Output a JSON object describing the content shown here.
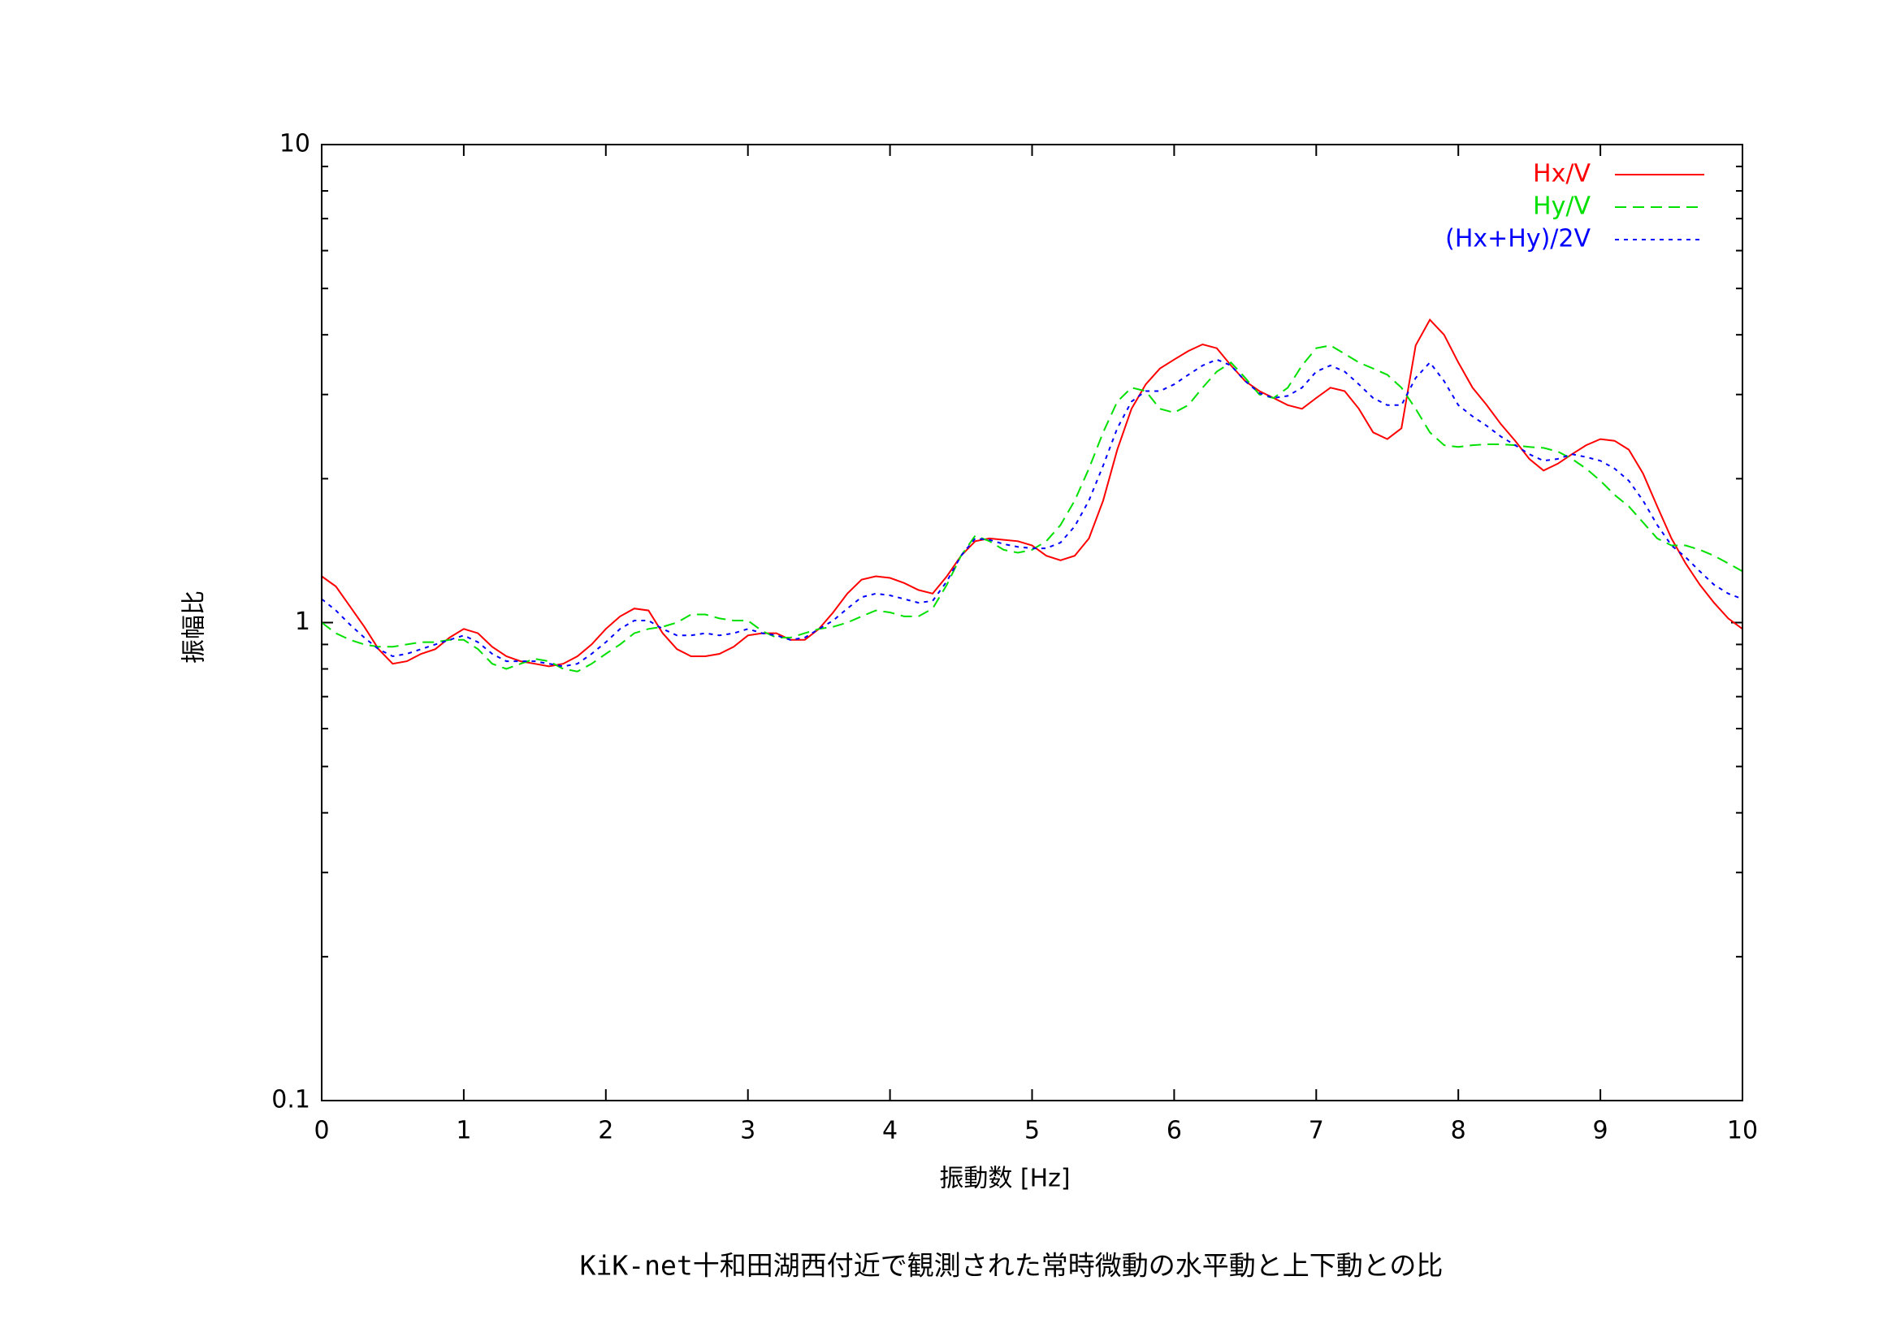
{
  "chart_data": {
    "type": "line",
    "title": "KiK-net十和田湖西付近で観測された常時微動の水平動と上下動との比",
    "xlabel": "振動数 [Hz]",
    "ylabel": "振幅比",
    "log_y": true,
    "legend": "top-right",
    "xlim": [
      0,
      10
    ],
    "xticks": [
      0,
      1,
      2,
      3,
      4,
      5,
      6,
      7,
      8,
      9,
      10
    ],
    "ylim": [
      0.1,
      10
    ],
    "yticks": [
      0.1,
      1,
      10
    ],
    "yminorticks": [
      0.2,
      0.3,
      0.4,
      0.5,
      0.6,
      0.7,
      0.8,
      0.9,
      2,
      3,
      4,
      5,
      6,
      7,
      8,
      9
    ],
    "x": [
      0,
      0.1,
      0.2,
      0.3,
      0.4,
      0.5,
      0.6,
      0.7,
      0.8,
      0.9,
      1,
      1.1,
      1.2,
      1.3,
      1.4,
      1.5,
      1.6,
      1.7,
      1.8,
      1.9,
      2,
      2.1,
      2.2,
      2.3,
      2.4,
      2.5,
      2.6,
      2.7,
      2.8,
      2.9,
      3,
      3.1,
      3.2,
      3.3,
      3.4,
      3.5,
      3.6,
      3.7,
      3.8,
      3.9,
      4,
      4.1,
      4.2,
      4.3,
      4.4,
      4.5,
      4.6,
      4.7,
      4.8,
      4.9,
      5,
      5.1,
      5.2,
      5.3,
      5.4,
      5.5,
      5.6,
      5.7,
      5.8,
      5.9,
      6,
      6.1,
      6.2,
      6.3,
      6.4,
      6.5,
      6.6,
      6.7,
      6.8,
      6.9,
      7,
      7.1,
      7.2,
      7.3,
      7.4,
      7.5,
      7.6,
      7.7,
      7.8,
      7.9,
      8,
      8.1,
      8.2,
      8.3,
      8.4,
      8.5,
      8.6,
      8.7,
      8.8,
      8.9,
      9,
      9.1,
      9.2,
      9.3,
      9.4,
      9.5,
      9.6,
      9.7,
      9.8,
      9.9,
      10
    ],
    "series": [
      {
        "name": "Hx/V",
        "color": "#ff0000",
        "dash": "none",
        "values": [
          1.25,
          1.19,
          1.08,
          0.98,
          0.88,
          0.82,
          0.83,
          0.86,
          0.88,
          0.93,
          0.97,
          0.95,
          0.89,
          0.85,
          0.83,
          0.82,
          0.81,
          0.82,
          0.85,
          0.9,
          0.97,
          1.03,
          1.07,
          1.06,
          0.95,
          0.88,
          0.85,
          0.85,
          0.86,
          0.89,
          0.94,
          0.95,
          0.95,
          0.92,
          0.92,
          0.97,
          1.05,
          1.15,
          1.23,
          1.25,
          1.24,
          1.21,
          1.17,
          1.15,
          1.25,
          1.38,
          1.48,
          1.5,
          1.49,
          1.48,
          1.45,
          1.38,
          1.35,
          1.38,
          1.5,
          1.8,
          2.3,
          2.8,
          3.15,
          3.4,
          3.55,
          3.7,
          3.82,
          3.75,
          3.45,
          3.2,
          3.05,
          2.95,
          2.85,
          2.8,
          2.95,
          3.1,
          3.05,
          2.8,
          2.5,
          2.42,
          2.55,
          3.8,
          4.3,
          4.0,
          3.5,
          3.1,
          2.85,
          2.6,
          2.4,
          2.2,
          2.08,
          2.15,
          2.25,
          2.35,
          2.42,
          2.4,
          2.3,
          2.05,
          1.75,
          1.5,
          1.33,
          1.2,
          1.1,
          1.02,
          0.97
        ]
      },
      {
        "name": "Hy/V",
        "color": "#00e000",
        "dash": "14 8",
        "values": [
          1.0,
          0.95,
          0.92,
          0.9,
          0.89,
          0.89,
          0.9,
          0.91,
          0.91,
          0.92,
          0.92,
          0.88,
          0.82,
          0.8,
          0.82,
          0.84,
          0.83,
          0.8,
          0.79,
          0.82,
          0.86,
          0.9,
          0.95,
          0.97,
          0.98,
          1.0,
          1.04,
          1.04,
          1.02,
          1.01,
          1.01,
          0.96,
          0.93,
          0.93,
          0.95,
          0.97,
          0.98,
          1.0,
          1.03,
          1.06,
          1.05,
          1.03,
          1.03,
          1.07,
          1.2,
          1.38,
          1.52,
          1.48,
          1.42,
          1.4,
          1.42,
          1.48,
          1.6,
          1.8,
          2.1,
          2.5,
          2.9,
          3.1,
          3.05,
          2.8,
          2.75,
          2.85,
          3.1,
          3.35,
          3.5,
          3.25,
          3.0,
          2.95,
          3.1,
          3.45,
          3.75,
          3.8,
          3.65,
          3.5,
          3.4,
          3.3,
          3.1,
          2.8,
          2.5,
          2.35,
          2.33,
          2.35,
          2.36,
          2.36,
          2.35,
          2.33,
          2.32,
          2.28,
          2.2,
          2.1,
          1.98,
          1.85,
          1.75,
          1.62,
          1.5,
          1.45,
          1.45,
          1.42,
          1.38,
          1.33,
          1.28
        ]
      },
      {
        "name": "(Hx+Hy)/2V",
        "color": "#0000ff",
        "dash": "5 6",
        "values": [
          1.12,
          1.06,
          0.99,
          0.93,
          0.88,
          0.85,
          0.86,
          0.88,
          0.9,
          0.92,
          0.94,
          0.91,
          0.86,
          0.83,
          0.83,
          0.83,
          0.82,
          0.81,
          0.82,
          0.86,
          0.91,
          0.97,
          1.01,
          1.01,
          0.97,
          0.94,
          0.94,
          0.95,
          0.94,
          0.95,
          0.97,
          0.95,
          0.94,
          0.92,
          0.93,
          0.97,
          1.01,
          1.07,
          1.13,
          1.15,
          1.14,
          1.12,
          1.1,
          1.11,
          1.22,
          1.38,
          1.5,
          1.49,
          1.46,
          1.44,
          1.43,
          1.43,
          1.47,
          1.59,
          1.8,
          2.13,
          2.55,
          2.9,
          3.05,
          3.05,
          3.15,
          3.3,
          3.45,
          3.55,
          3.45,
          3.2,
          3.02,
          2.95,
          2.98,
          3.1,
          3.35,
          3.45,
          3.35,
          3.15,
          2.95,
          2.85,
          2.85,
          3.25,
          3.5,
          3.2,
          2.85,
          2.7,
          2.58,
          2.45,
          2.35,
          2.25,
          2.18,
          2.2,
          2.25,
          2.22,
          2.18,
          2.1,
          1.98,
          1.8,
          1.6,
          1.45,
          1.37,
          1.28,
          1.2,
          1.15,
          1.12
        ]
      }
    ]
  }
}
